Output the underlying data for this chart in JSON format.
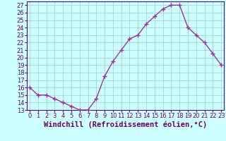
{
  "x": [
    0,
    1,
    2,
    3,
    4,
    5,
    6,
    7,
    8,
    9,
    10,
    11,
    12,
    13,
    14,
    15,
    16,
    17,
    18,
    19,
    20,
    21,
    22,
    23
  ],
  "y": [
    16,
    15,
    15,
    14.5,
    14,
    13.5,
    13,
    13,
    14.5,
    17.5,
    19.5,
    21,
    22.5,
    23,
    24.5,
    25.5,
    26.5,
    27,
    27,
    24,
    23,
    22,
    20.5,
    19
  ],
  "line_color": "#993399",
  "marker": "+",
  "marker_size": 4,
  "marker_lw": 1.0,
  "bg_color": "#ccffff",
  "grid_color": "#99cccc",
  "xlabel": "Windchill (Refroidissement éolien,°C)",
  "xlabel_fontsize": 7.5,
  "ylim": [
    13,
    27.5
  ],
  "ytick_min": 13,
  "ytick_max": 27,
  "xticks": [
    0,
    1,
    2,
    3,
    4,
    5,
    6,
    7,
    8,
    9,
    10,
    11,
    12,
    13,
    14,
    15,
    16,
    17,
    18,
    19,
    20,
    21,
    22,
    23
  ],
  "tick_fontsize": 6,
  "axis_color": "#660066",
  "line_width": 1.0,
  "xlim_left": -0.3,
  "xlim_right": 23.3
}
